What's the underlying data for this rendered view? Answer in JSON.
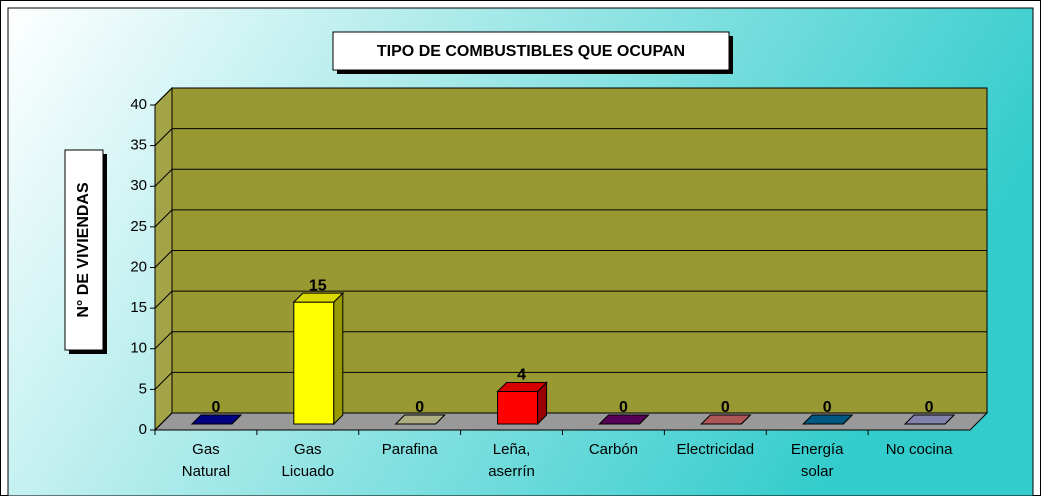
{
  "chart_data": {
    "type": "bar3d",
    "title": "TIPO DE COMBUSTIBLES QUE OCUPAN",
    "ylabel": "N° DE VIVIENDAS",
    "categories": [
      "Gas Natural",
      "Gas Licuado",
      "Parafina",
      "Leña, aserrín",
      "Carbón",
      "Electricidad",
      "Energía solar",
      "No cocina"
    ],
    "values": [
      0,
      15,
      0,
      4,
      0,
      0,
      0,
      0
    ],
    "colors": [
      "#000099",
      "#ffff00",
      "#cccc99",
      "#ff0000",
      "#660066",
      "#cc6666",
      "#006699",
      "#9999cc"
    ],
    "ylim": [
      0,
      40
    ],
    "yticks": [
      0,
      5,
      10,
      15,
      20,
      25,
      30,
      35,
      40
    ],
    "grid": true
  }
}
